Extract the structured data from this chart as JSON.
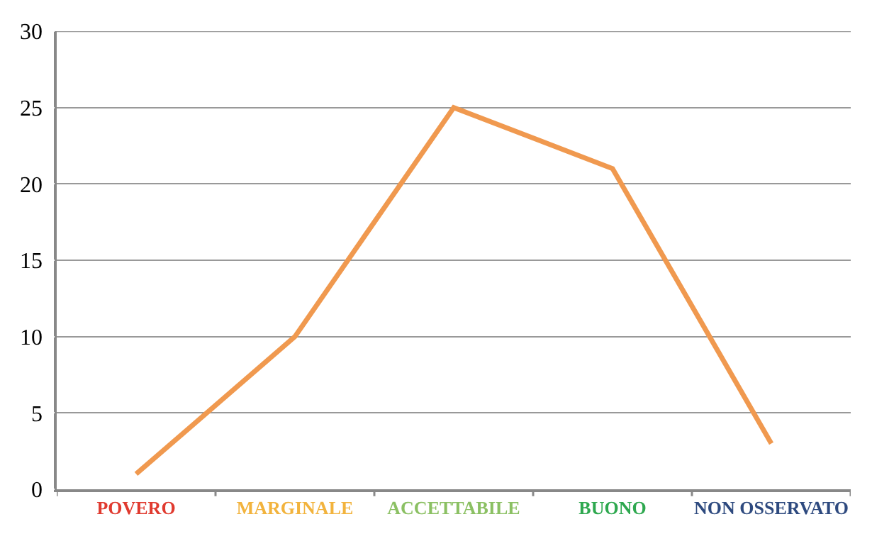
{
  "chart_data": {
    "type": "line",
    "categories": [
      "POVERO",
      "MARGINALE",
      "ACCETTABILE",
      "BUONO",
      "NON OSSERVATO"
    ],
    "series": [
      {
        "color": "#f0994f",
        "values": [
          1,
          10,
          25,
          21,
          3
        ]
      }
    ],
    "ylim": [
      0,
      30
    ],
    "yticks": [
      0,
      5,
      10,
      15,
      20,
      25,
      30
    ],
    "grid": "y",
    "legend": false,
    "marker": "none",
    "line_style": "solid"
  }
}
